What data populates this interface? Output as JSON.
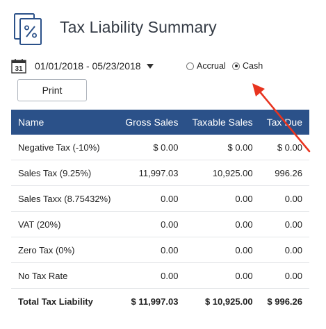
{
  "header": {
    "title": "Tax Liability Summary",
    "icon": "percent-document-icon"
  },
  "filters": {
    "date_range": "01/01/2018 - 05/23/2018",
    "calendar_day": "31",
    "basis_options": [
      "Accrual",
      "Cash"
    ],
    "selected_basis": "Cash"
  },
  "toolbar": {
    "print_label": "Print"
  },
  "table": {
    "columns": [
      "Name",
      "Gross Sales",
      "Taxable Sales",
      "Tax Due"
    ],
    "rows": [
      [
        "Negative Tax (-10%)",
        "$ 0.00",
        "$ 0.00",
        "$ 0.00"
      ],
      [
        "Sales Tax (9.25%)",
        "11,997.03",
        "10,925.00",
        "996.26"
      ],
      [
        "Sales Taxx (8.75432%)",
        "0.00",
        "0.00",
        "0.00"
      ],
      [
        "VAT (20%)",
        "0.00",
        "0.00",
        "0.00"
      ],
      [
        "Zero Tax (0%)",
        "0.00",
        "0.00",
        "0.00"
      ],
      [
        "No Tax Rate",
        "0.00",
        "0.00",
        "0.00"
      ]
    ],
    "total": [
      "Total Tax Liability",
      "$ 11,997.03",
      "$ 10,925.00",
      "$ 996.26"
    ]
  },
  "colors": {
    "header_bg": "#2b5189",
    "icon_blue": "#2b5189",
    "annotation_arrow": "#e8341f"
  }
}
